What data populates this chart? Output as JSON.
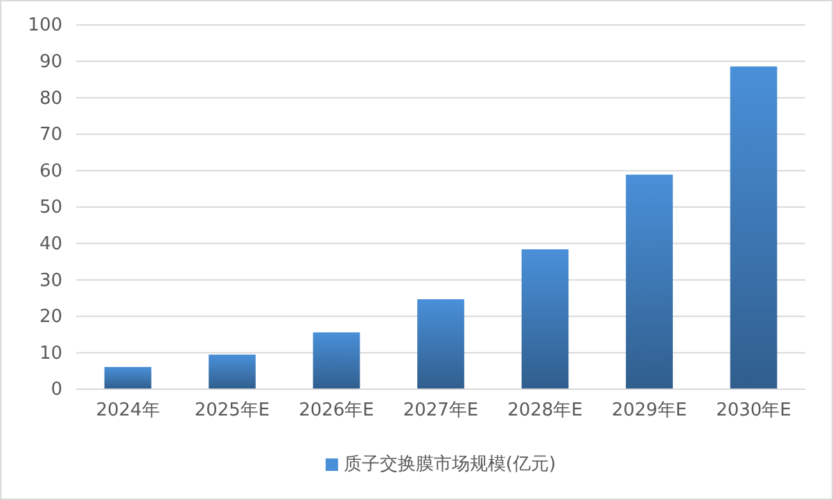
{
  "chart_data": {
    "type": "bar",
    "categories": [
      "2024年",
      "2025年E",
      "2026年E",
      "2027年E",
      "2028年E",
      "2029年E",
      "2030年E"
    ],
    "series": [
      {
        "name": "质子交换膜市场规模(亿元)",
        "color": "#4a90d9",
        "values": [
          6.1,
          9.5,
          15.6,
          24.7,
          38.4,
          58.9,
          88.6
        ]
      }
    ],
    "ylim": [
      0,
      100
    ],
    "yticks": [
      0,
      10,
      20,
      30,
      40,
      50,
      60,
      70,
      80,
      90,
      100
    ],
    "grid": "y",
    "legend": "bottom"
  }
}
